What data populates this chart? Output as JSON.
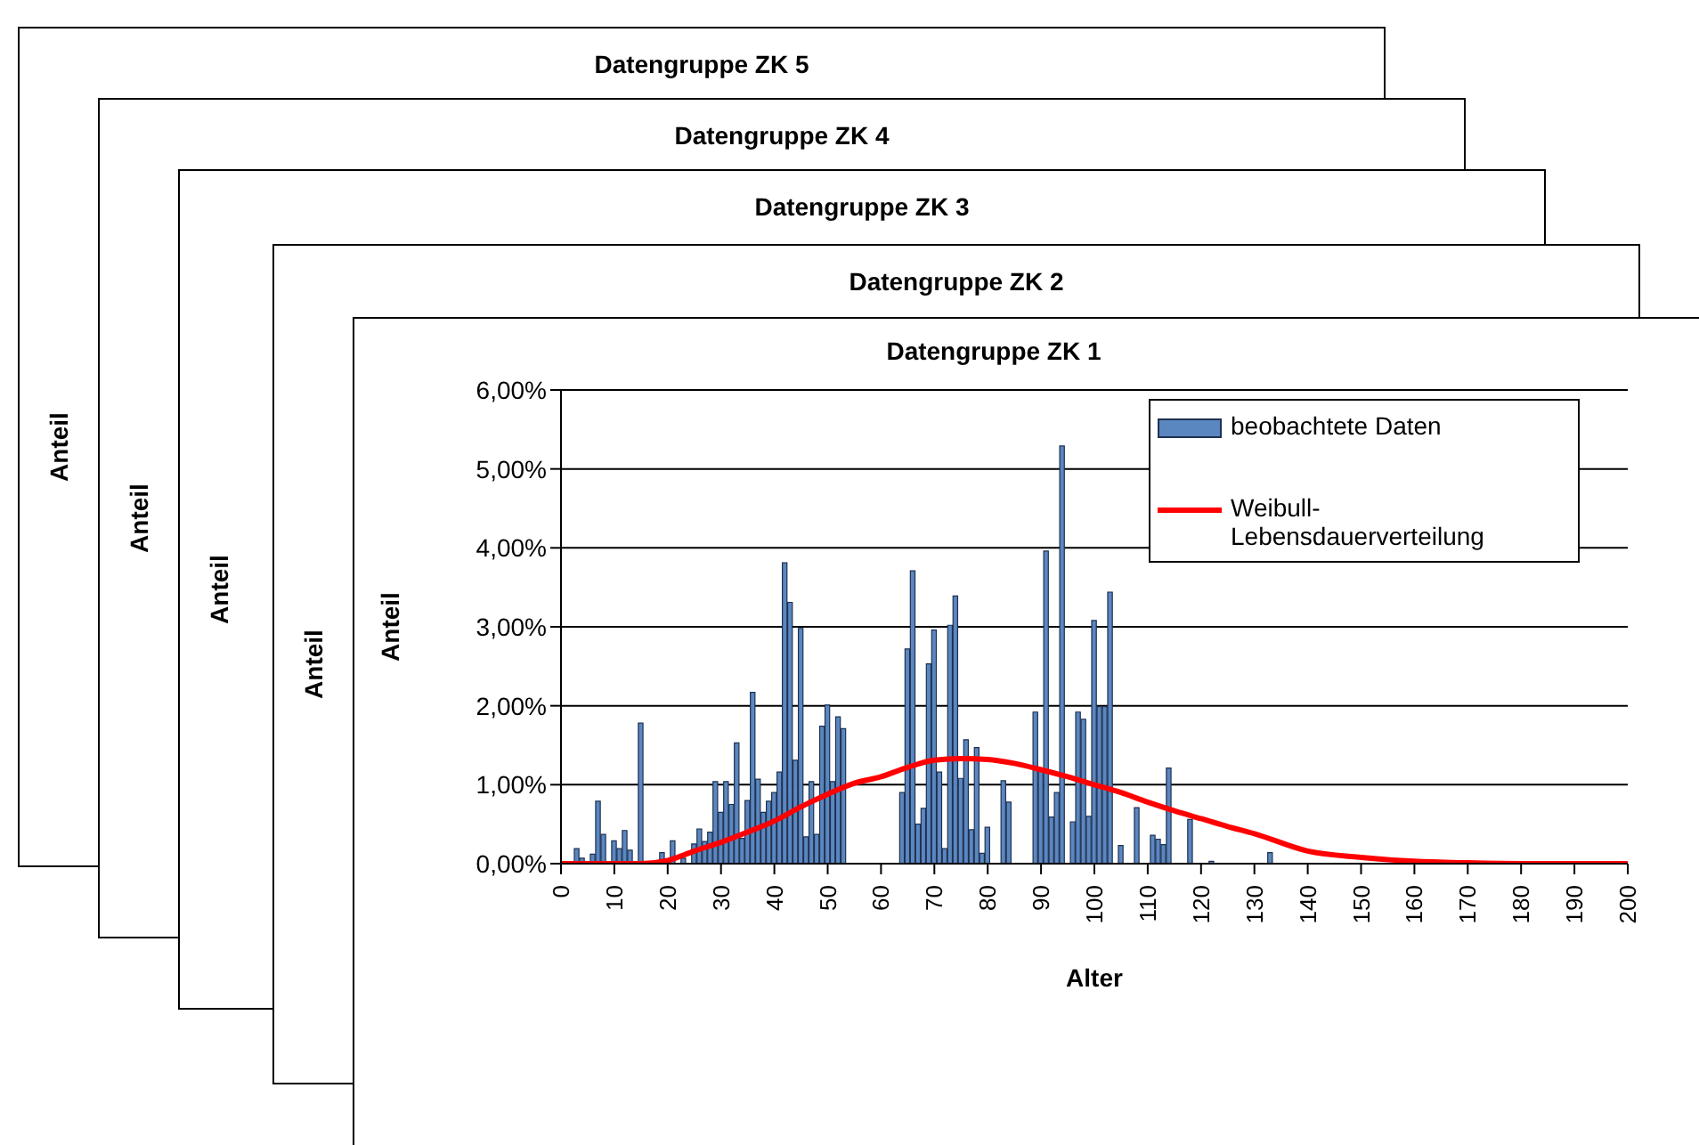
{
  "chart_data": [
    {
      "type": "other",
      "title": "Datengruppe ZK 5",
      "ylabel": "Anteil"
    },
    {
      "type": "other",
      "title": "Datengruppe ZK 4",
      "ylabel": "Anteil"
    },
    {
      "type": "other",
      "title": "Datengruppe ZK 3",
      "ylabel": "Anteil"
    },
    {
      "type": "other",
      "title": "Datengruppe ZK 2",
      "ylabel": "Anteil"
    },
    {
      "type": "bar",
      "title": "Datengruppe ZK 1",
      "xlabel": "Alter",
      "ylabel": "Anteil",
      "xlim": [
        0,
        200
      ],
      "xticks": [
        0,
        10,
        20,
        30,
        40,
        50,
        60,
        70,
        80,
        90,
        100,
        110,
        120,
        130,
        140,
        150,
        160,
        170,
        180,
        190,
        200
      ],
      "ylim": [
        0,
        6
      ],
      "yticks": [
        {
          "value": 0,
          "label": "0,00%"
        },
        {
          "value": 1,
          "label": "1,00%"
        },
        {
          "value": 2,
          "label": "2,00%"
        },
        {
          "value": 3,
          "label": "3,00%"
        },
        {
          "value": 4,
          "label": "4,00%"
        },
        {
          "value": 5,
          "label": "5,00%"
        },
        {
          "value": 6,
          "label": "6,00%"
        }
      ],
      "grid": "y",
      "legend": "top right",
      "series": [
        {
          "name": "beobachtete Daten",
          "type": "bar",
          "color": "#5b87c0",
          "x": [
            3,
            4,
            6,
            7,
            8,
            10,
            11,
            12,
            13,
            15,
            19,
            21,
            23,
            25,
            26,
            27,
            28,
            29,
            30,
            31,
            32,
            33,
            34,
            35,
            36,
            37,
            38,
            39,
            40,
            41,
            42,
            43,
            44,
            45,
            46,
            47,
            48,
            49,
            50,
            51,
            52,
            53,
            64,
            65,
            66,
            67,
            68,
            69,
            70,
            71,
            72,
            73,
            74,
            75,
            76,
            77,
            78,
            79,
            80,
            83,
            84,
            89,
            90,
            91,
            92,
            93,
            94,
            96,
            97,
            98,
            99,
            100,
            101,
            102,
            103,
            105,
            108,
            111,
            112,
            113,
            114,
            118,
            122,
            133
          ],
          "values": [
            0.19,
            0.07,
            0.12,
            0.79,
            0.37,
            0.29,
            0.19,
            0.42,
            0.17,
            1.78,
            0.14,
            0.29,
            0.07,
            0.25,
            0.44,
            0.28,
            0.4,
            1.04,
            0.65,
            1.04,
            0.75,
            1.53,
            0.32,
            0.8,
            2.17,
            1.07,
            0.65,
            0.79,
            0.9,
            1.16,
            3.81,
            3.31,
            1.31,
            2.98,
            0.34,
            1.04,
            0.37,
            1.74,
            2.01,
            1.04,
            1.86,
            1.71,
            0.9,
            2.72,
            3.71,
            0.5,
            0.7,
            2.53,
            2.96,
            1.16,
            0.19,
            3.02,
            3.39,
            1.08,
            1.57,
            0.43,
            1.47,
            0.13,
            0.46,
            1.05,
            0.78,
            1.92,
            1.2,
            3.96,
            0.59,
            0.9,
            5.29,
            0.53,
            1.92,
            1.83,
            0.6,
            3.08,
            1.99,
            1.99,
            3.44,
            0.23,
            0.71,
            0.36,
            0.31,
            0.24,
            1.21,
            0.56,
            0.03,
            0.14
          ]
        },
        {
          "name": "Weibull-Lebensdauerverteilung",
          "type": "line",
          "color": "#ff0000",
          "line_style": "solid",
          "marker": "none",
          "x": [
            0,
            15,
            20,
            25,
            30,
            35,
            40,
            45,
            50,
            55,
            60,
            65,
            70,
            75,
            80,
            85,
            90,
            95,
            100,
            105,
            110,
            115,
            120,
            125,
            130,
            140,
            150,
            160,
            170,
            180,
            190,
            200
          ],
          "values": [
            0,
            0,
            0.04,
            0.16,
            0.27,
            0.4,
            0.54,
            0.72,
            0.88,
            1.02,
            1.1,
            1.22,
            1.31,
            1.33,
            1.32,
            1.27,
            1.19,
            1.1,
            1.0,
            0.9,
            0.78,
            0.67,
            0.57,
            0.47,
            0.38,
            0.16,
            0.08,
            0.03,
            0.01,
            0,
            0,
            0
          ]
        }
      ]
    }
  ]
}
